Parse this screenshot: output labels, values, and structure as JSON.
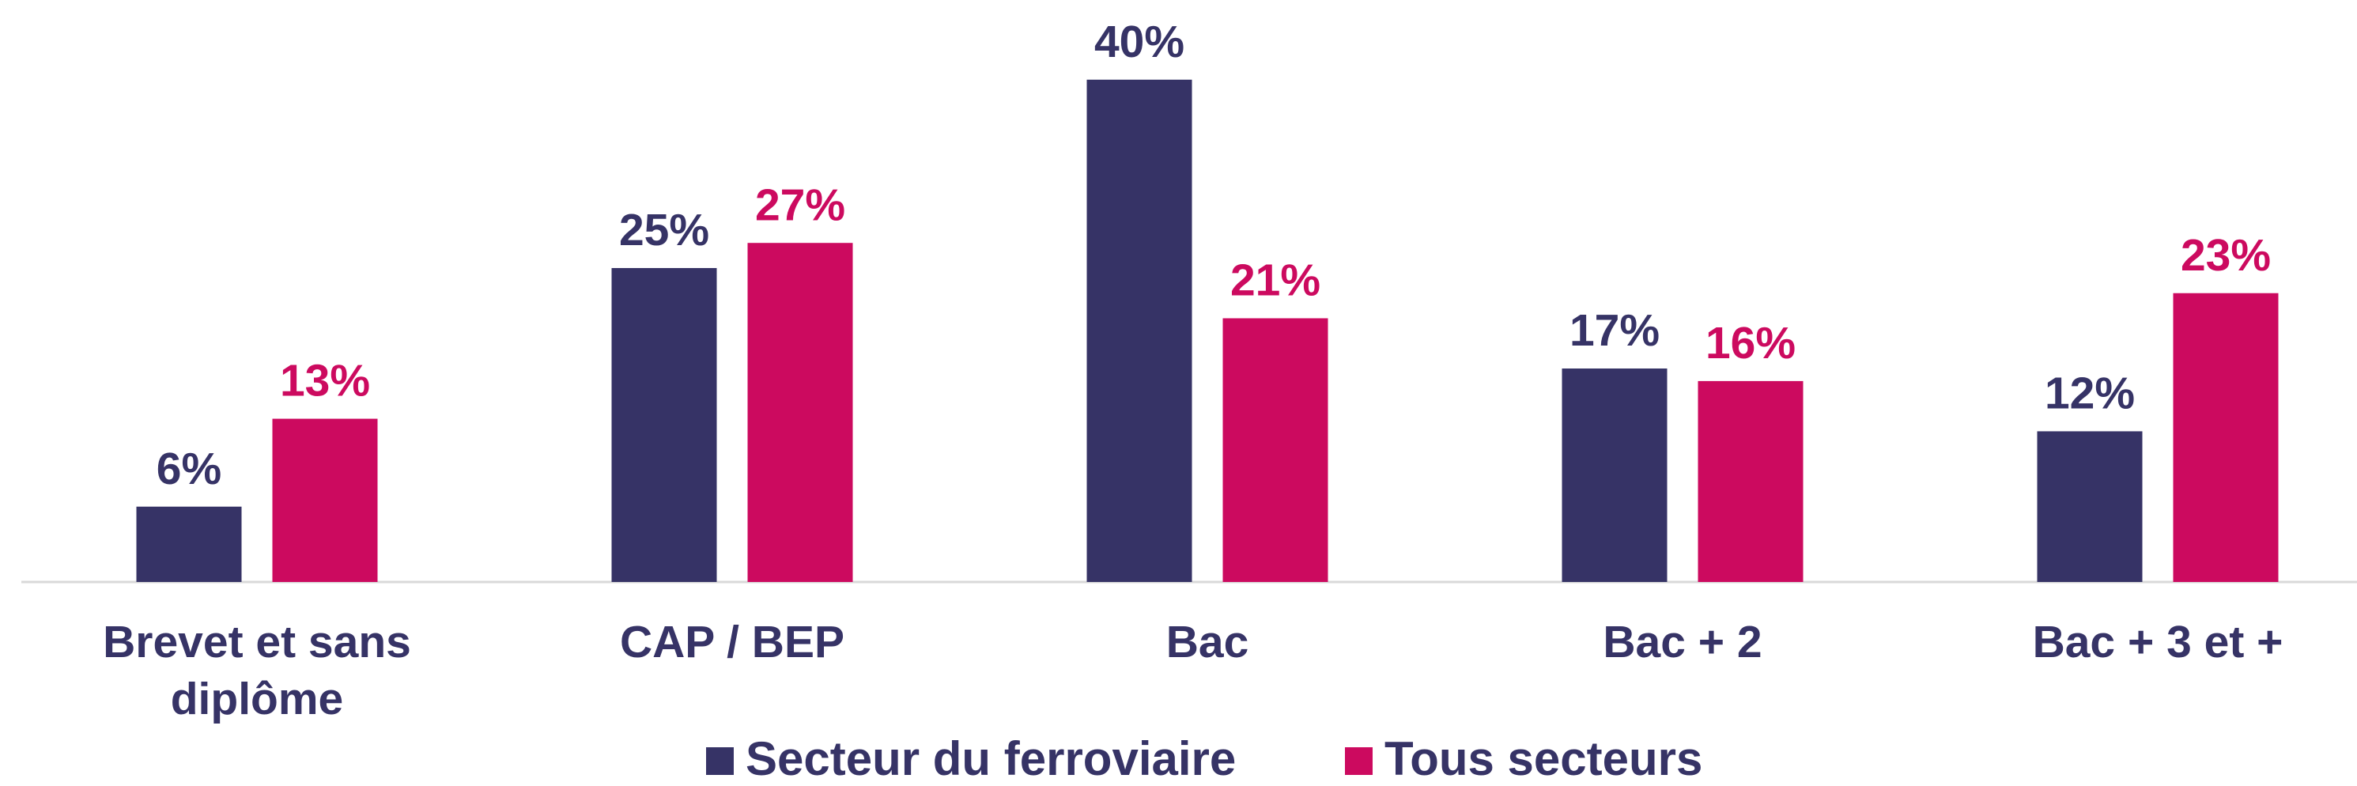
{
  "chart_data": {
    "type": "bar",
    "categories": [
      "Brevet et sans diplôme",
      "CAP / BEP",
      "Bac",
      "Bac + 2",
      "Bac + 3 et +"
    ],
    "series": [
      {
        "name": "Secteur du ferroviaire",
        "color": "#363366",
        "values": [
          6,
          25,
          40,
          17,
          12
        ],
        "value_labels": [
          "6%",
          "25%",
          "40%",
          "17%",
          "12%"
        ]
      },
      {
        "name": "Tous secteurs",
        "color": "#cc0a5f",
        "values": [
          13,
          27,
          21,
          16,
          23
        ],
        "value_labels": [
          "13%",
          "27%",
          "21%",
          "16%",
          "23%"
        ]
      }
    ],
    "ylim": [
      0,
      42
    ],
    "grid": false,
    "legend": "bottom"
  }
}
